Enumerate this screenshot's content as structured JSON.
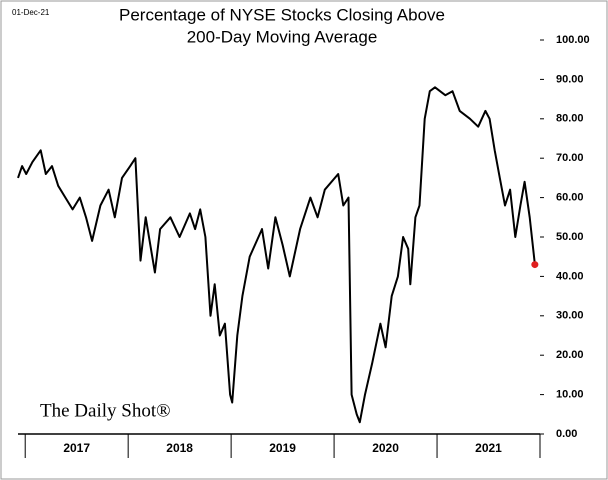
{
  "chart_data": {
    "type": "line",
    "date_note": "01-Dec-21",
    "title": [
      "Percentage of NYSE Stocks Closing Above",
      "200-Day Moving Average"
    ],
    "watermark": "The Daily Shot®",
    "x": [
      2016.93,
      2016.97,
      2017.01,
      2017.07,
      2017.15,
      2017.2,
      2017.26,
      2017.32,
      2017.39,
      2017.46,
      2017.53,
      2017.59,
      2017.65,
      2017.73,
      2017.81,
      2017.87,
      2017.94,
      2018.02,
      2018.07,
      2018.12,
      2018.17,
      2018.26,
      2018.31,
      2018.41,
      2018.5,
      2018.6,
      2018.65,
      2018.7,
      2018.75,
      2018.8,
      2018.84,
      2018.89,
      2018.94,
      2018.99,
      2019.01,
      2019.06,
      2019.11,
      2019.18,
      2019.3,
      2019.36,
      2019.43,
      2019.5,
      2019.57,
      2019.67,
      2019.77,
      2019.84,
      2019.91,
      2020.04,
      2020.09,
      2020.14,
      2020.17,
      2020.22,
      2020.25,
      2020.3,
      2020.37,
      2020.45,
      2020.5,
      2020.56,
      2020.62,
      2020.67,
      2020.72,
      2020.74,
      2020.79,
      2020.83,
      2020.88,
      2020.93,
      2020.98,
      2021.08,
      2021.15,
      2021.22,
      2021.32,
      2021.4,
      2021.47,
      2021.51,
      2021.56,
      2021.61,
      2021.66,
      2021.71,
      2021.76,
      2021.81,
      2021.85,
      2021.9,
      2021.95
    ],
    "series": [
      {
        "color": "#000000",
        "values": [
          65,
          68,
          66,
          69,
          72,
          66,
          68,
          63,
          60,
          57,
          60,
          55,
          49,
          58,
          62,
          55,
          65,
          68,
          70,
          44,
          55,
          41,
          52,
          55,
          50,
          56,
          52,
          57,
          50,
          30,
          38,
          25,
          28,
          10,
          8,
          25,
          35,
          45,
          52,
          42,
          55,
          48,
          40,
          52,
          60,
          55,
          62,
          66,
          58,
          60,
          10,
          5,
          3,
          10,
          18,
          28,
          22,
          35,
          40,
          50,
          47,
          38,
          55,
          58,
          80,
          87,
          88,
          86,
          87,
          82,
          80,
          78,
          82,
          80,
          72,
          65,
          58,
          62,
          50,
          58,
          64,
          55,
          43
        ]
      }
    ],
    "last_point_color": "#e02020",
    "periods": [
      "2017",
      "2018",
      "2019",
      "2020",
      "2021"
    ],
    "xlim": [
      2016.93,
      2022.0
    ],
    "xticks": [
      2017,
      2018,
      2019,
      2020,
      2021,
      2022
    ],
    "ylim": [
      0,
      100
    ],
    "yticks": [
      {
        "value": 0,
        "label": "0.00"
      },
      {
        "value": 10,
        "label": "10.00"
      },
      {
        "value": 20,
        "label": "20.00"
      },
      {
        "value": 30,
        "label": "30.00"
      },
      {
        "value": 40,
        "label": "40.00"
      },
      {
        "value": 50,
        "label": "50.00"
      },
      {
        "value": 60,
        "label": "60.00"
      },
      {
        "value": 70,
        "label": "70.00"
      },
      {
        "value": 80,
        "label": "80.00"
      },
      {
        "value": 90,
        "label": "90.00"
      },
      {
        "value": 100,
        "label": "100.00"
      }
    ]
  }
}
